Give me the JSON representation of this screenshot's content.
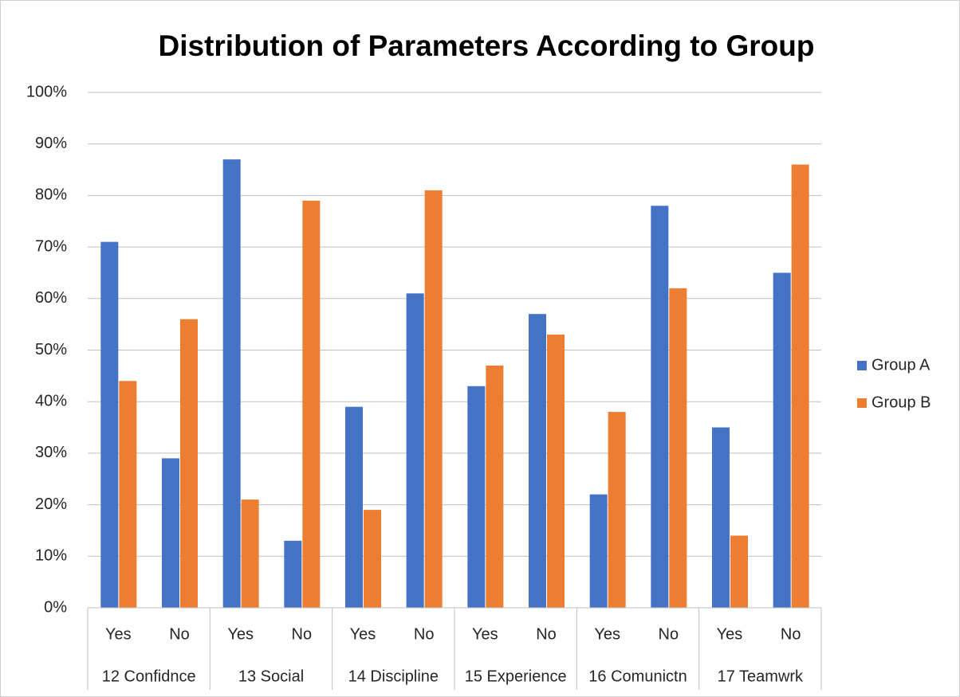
{
  "chart_data": {
    "type": "bar",
    "title": "Distribution of Parameters According to Group",
    "categories": [
      "Yes",
      "No",
      "Yes",
      "No",
      "Yes",
      "No",
      "Yes",
      "No",
      "Yes",
      "No",
      "Yes",
      "No"
    ],
    "category_groups": [
      "12 Confidnce",
      "13 Social",
      "14 Discipline",
      "15 Experience",
      "16 Comunictn",
      "17 Teamwrk"
    ],
    "series": [
      {
        "name": "Group A",
        "color": "#4472c4",
        "values": [
          71,
          29,
          87,
          13,
          39,
          61,
          43,
          57,
          22,
          78,
          35,
          65
        ]
      },
      {
        "name": "Group B",
        "color": "#ed7d31",
        "values": [
          44,
          56,
          21,
          79,
          19,
          81,
          47,
          53,
          38,
          62,
          14,
          86
        ]
      }
    ],
    "ylim": [
      0,
      100
    ],
    "yticks": [
      {
        "value": 0,
        "label": "0%"
      },
      {
        "value": 10,
        "label": "10%"
      },
      {
        "value": 20,
        "label": "20%"
      },
      {
        "value": 30,
        "label": "30%"
      },
      {
        "value": 40,
        "label": "40%"
      },
      {
        "value": 50,
        "label": "50%"
      },
      {
        "value": 60,
        "label": "60%"
      },
      {
        "value": 70,
        "label": "70%"
      },
      {
        "value": 80,
        "label": "80%"
      },
      {
        "value": 90,
        "label": "90%"
      },
      {
        "value": 100,
        "label": "100%"
      }
    ],
    "grid": true,
    "legend": "right"
  }
}
